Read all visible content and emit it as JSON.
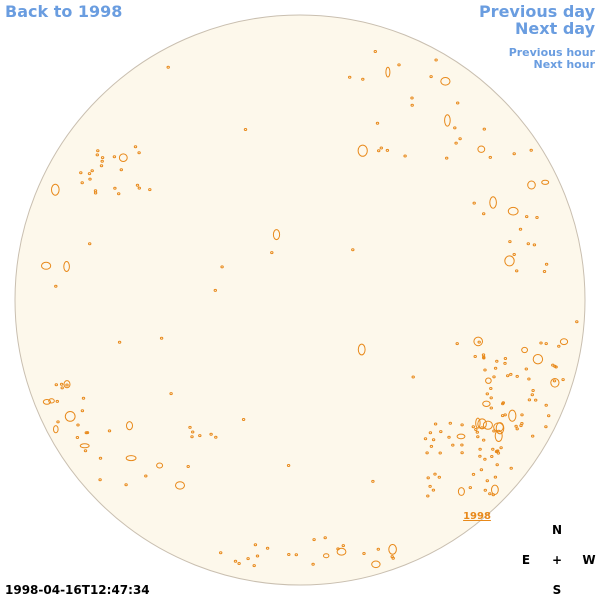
{
  "navigation": {
    "back": "Back to 1998",
    "previous_day": "Previous day",
    "next_day": "Next day",
    "previous_hour": "Previous hour",
    "next_hour": "Next hour"
  },
  "image": {
    "year_label": "1998",
    "timestamp": "1998-04-16T12:47:34"
  },
  "compass": {
    "north": "N",
    "east": "E",
    "center": "+",
    "west": "W",
    "south": "S"
  }
}
